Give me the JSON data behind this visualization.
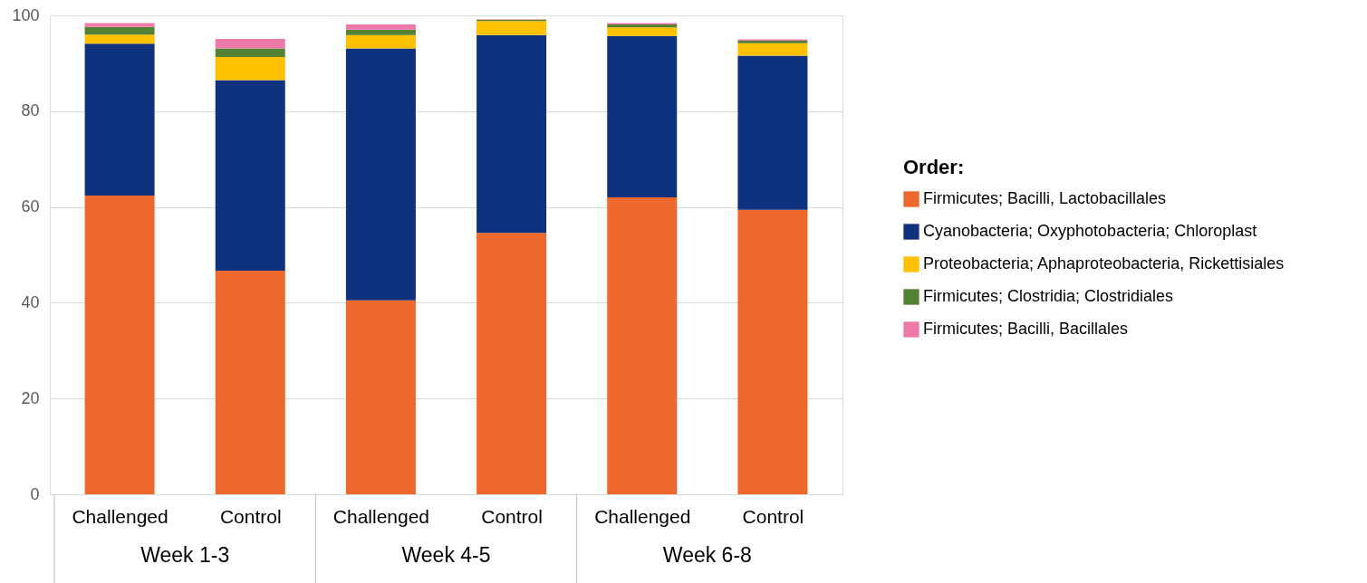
{
  "chart_data": {
    "type": "bar",
    "stacked": true,
    "categories": [
      "Challenged",
      "Control",
      "Challenged",
      "Control",
      "Challenged",
      "Control"
    ],
    "annotations": [
      "Week 1-3",
      "Week 4-5",
      "Week 6-8"
    ],
    "legend_title": "Order:",
    "series": [
      {
        "name": "Firmicutes; Bacilli, Lactobacillales",
        "color": "#ed682c",
        "values": [
          62.4,
          46.7,
          40.5,
          54.6,
          62.0,
          59.4
        ]
      },
      {
        "name": "Cyanobacteria; Oxyphotobacteria; Chloroplast",
        "color": "#0e327e",
        "values": [
          31.7,
          39.8,
          52.6,
          41.3,
          33.7,
          32.2
        ]
      },
      {
        "name": "Proteobacteria; Aphaproteobacteria, Rickettisiales",
        "color": "#ffc000",
        "values": [
          1.9,
          4.8,
          2.8,
          2.9,
          1.8,
          2.6
        ]
      },
      {
        "name": "Firmicutes; Clostridia; Clostridiales",
        "color": "#548235",
        "values": [
          1.6,
          1.8,
          1.1,
          0.3,
          0.6,
          0.5
        ]
      },
      {
        "name": "Firmicutes; Bacilli, Bacillales",
        "color": "#ee7aa8",
        "values": [
          0.8,
          2.0,
          1.1,
          0.1,
          0.3,
          0.3
        ]
      }
    ],
    "ylim": [
      0,
      100
    ],
    "yticks": [
      0,
      20,
      40,
      60,
      80,
      100
    ],
    "grid": "y",
    "legend": "right"
  }
}
